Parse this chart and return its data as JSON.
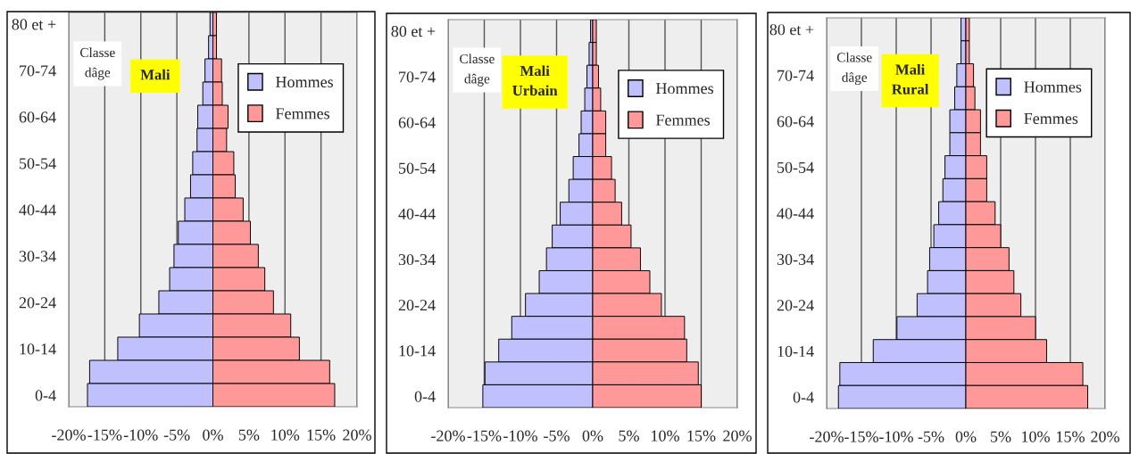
{
  "chart_data": [
    {
      "type": "bar",
      "orientation": "horizontal",
      "stacked": true,
      "title": "Mali",
      "ylabel": "Classe dâge",
      "categories": [
        "80 et +",
        null,
        "70-74",
        null,
        "60-64",
        null,
        "50-54",
        null,
        "40-44",
        null,
        "30-34",
        null,
        "20-24",
        null,
        "10-14",
        null,
        "0-4"
      ],
      "series": [
        {
          "name": "Hommes",
          "color": "#c0c0ff",
          "values": [
            -0.4,
            -0.6,
            -1.1,
            -1.4,
            -2.1,
            -2.2,
            -2.8,
            -3.1,
            -3.9,
            -4.8,
            -5.4,
            -6.0,
            -7.5,
            -10.2,
            -13.2,
            -17.1,
            -17.4
          ]
        },
        {
          "name": "Femmes",
          "color": "#ff9999",
          "values": [
            0.5,
            0.5,
            1.2,
            1.3,
            2.1,
            1.9,
            2.9,
            3.1,
            4.2,
            5.2,
            6.3,
            7.2,
            8.4,
            10.8,
            12.0,
            16.2,
            16.9
          ]
        }
      ],
      "xlim": [
        -20,
        20
      ],
      "xticks": [
        {
          "value": -20,
          "label": "-20%"
        },
        {
          "value": -15,
          "label": "-15%"
        },
        {
          "value": -10,
          "label": "-10%"
        },
        {
          "value": -5,
          "label": "-5%"
        },
        {
          "value": 0,
          "label": "0%"
        },
        {
          "value": 5,
          "label": "5%"
        },
        {
          "value": 10,
          "label": "10%"
        },
        {
          "value": 15,
          "label": "15%"
        },
        {
          "value": 20,
          "label": "20%"
        }
      ],
      "grid": "x",
      "legend": "top right"
    },
    {
      "type": "bar",
      "orientation": "horizontal",
      "stacked": true,
      "title": "Mali Urbain",
      "ylabel": "Classe dâge",
      "categories": [
        "80 et +",
        null,
        "70-74",
        null,
        "60-64",
        null,
        "50-54",
        null,
        "40-44",
        null,
        "30-34",
        null,
        "20-24",
        null,
        "10-14",
        null,
        "0-4"
      ],
      "series": [
        {
          "name": "Hommes",
          "color": "#c0c0ff",
          "values": [
            -0.3,
            -0.5,
            -0.8,
            -1.1,
            -1.6,
            -1.9,
            -2.7,
            -3.3,
            -4.5,
            -5.6,
            -6.4,
            -7.4,
            -9.3,
            -11.2,
            -13.0,
            -14.9,
            -15.2
          ]
        },
        {
          "name": "Femmes",
          "color": "#ff9999",
          "values": [
            0.5,
            0.5,
            0.8,
            1.1,
            1.8,
            1.8,
            2.6,
            3.1,
            4.0,
            5.3,
            6.6,
            7.9,
            9.5,
            12.7,
            13.0,
            14.6,
            15.0
          ]
        }
      ],
      "xlim": [
        -20,
        20
      ],
      "xticks": [
        {
          "value": -20,
          "label": "-20%"
        },
        {
          "value": -15,
          "label": "-15%"
        },
        {
          "value": -10,
          "label": "-10%"
        },
        {
          "value": -5,
          "label": "-5%"
        },
        {
          "value": 0,
          "label": "0%"
        },
        {
          "value": 5,
          "label": "5%"
        },
        {
          "value": 10,
          "label": "10%"
        },
        {
          "value": 15,
          "label": "15%"
        },
        {
          "value": 20,
          "label": "20%"
        }
      ],
      "grid": "x",
      "legend": "top right"
    },
    {
      "type": "bar",
      "orientation": "horizontal",
      "stacked": true,
      "title": "Mali Rural",
      "ylabel": "Classe dâge",
      "categories": [
        "80 et +",
        null,
        "70-74",
        null,
        "60-64",
        null,
        "50-54",
        null,
        "40-44",
        null,
        "30-34",
        null,
        "20-24",
        null,
        "10-14",
        null,
        "0-4"
      ],
      "series": [
        {
          "name": "Hommes",
          "color": "#c0c0ff",
          "values": [
            -0.7,
            -0.7,
            -1.3,
            -1.6,
            -2.3,
            -2.3,
            -3.0,
            -3.3,
            -3.9,
            -4.6,
            -5.2,
            -5.5,
            -7.0,
            -9.9,
            -13.3,
            -18.1,
            -18.3
          ]
        },
        {
          "name": "Femmes",
          "color": "#ff9999",
          "values": [
            0.5,
            0.5,
            1.1,
            1.3,
            2.1,
            2.1,
            3.0,
            3.0,
            4.2,
            5.0,
            6.2,
            6.9,
            7.9,
            10.0,
            11.6,
            16.8,
            17.5
          ]
        }
      ],
      "xlim": [
        -20,
        20
      ],
      "xticks": [
        {
          "value": -20,
          "label": "-20%"
        },
        {
          "value": -15,
          "label": "-15%"
        },
        {
          "value": -10,
          "label": "-10%"
        },
        {
          "value": -5,
          "label": "-5%"
        },
        {
          "value": 0,
          "label": "0%"
        },
        {
          "value": 5,
          "label": "5%"
        },
        {
          "value": 10,
          "label": "10%"
        },
        {
          "value": 15,
          "label": "15%"
        },
        {
          "value": 20,
          "label": "20%"
        }
      ],
      "grid": "x",
      "legend": "top right"
    }
  ]
}
